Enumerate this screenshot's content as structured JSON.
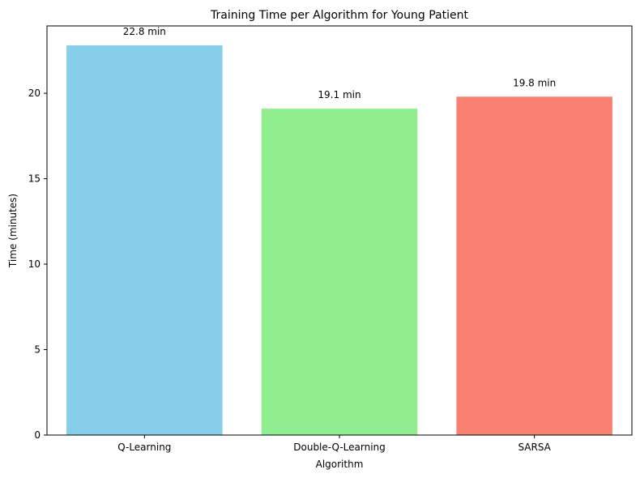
{
  "chart_data": {
    "type": "bar",
    "title": "Training Time per Algorithm for Young Patient",
    "xlabel": "Algorithm",
    "ylabel": "Time (minutes)",
    "categories": [
      "Q-Learning",
      "Double-Q-Learning",
      "SARSA"
    ],
    "values": [
      22.8,
      19.1,
      19.8
    ],
    "data_labels": [
      "22.8 min",
      "19.1 min",
      "19.8 min"
    ],
    "colors": [
      "#87ceeb",
      "#90ee90",
      "#fa8072"
    ],
    "ylim": [
      0,
      23.94
    ],
    "yticks": [
      0,
      5,
      10,
      15,
      20
    ],
    "ytick_labels": [
      "0",
      "5",
      "10",
      "15",
      "20"
    ],
    "grid": false,
    "legend": "none"
  }
}
